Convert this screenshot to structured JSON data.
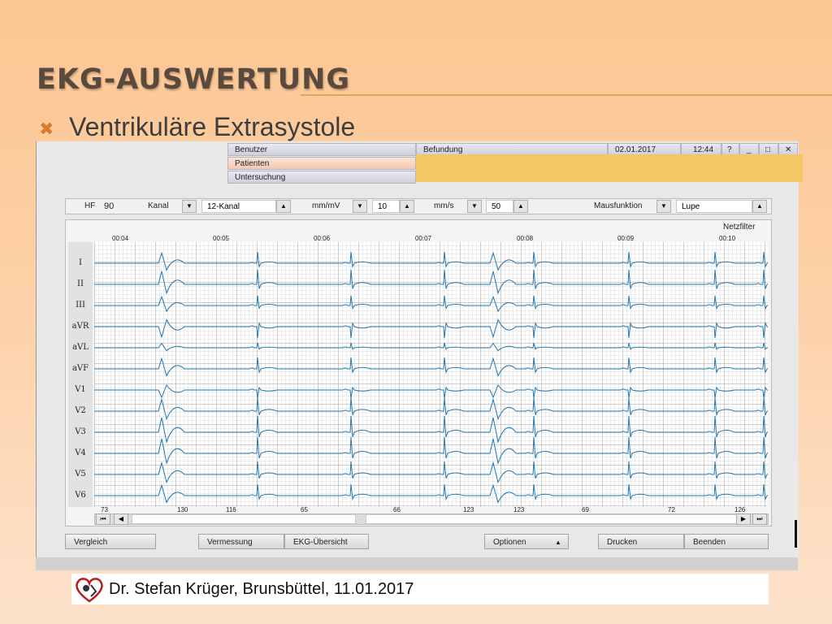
{
  "slide": {
    "title": "EKG-Auswertung",
    "bullet_icon": "x-bullet-icon",
    "bullet_text": "Ventrikuläre Extrasystole",
    "footer": "Dr. Stefan Krüger, Brunsbüttel, 11.01.2017",
    "colors": {
      "background": "#fcc692",
      "accent": "#d87a30",
      "overlay": "#f2c864",
      "trace": "#1f77b4"
    }
  },
  "app": {
    "header": {
      "benutzer": "Benutzer",
      "patienten": "Patienten",
      "untersuchung": "Untersuchung",
      "befundung": "Befundung",
      "date": "02.01.2017",
      "time": "12:44",
      "help": "?",
      "minimize": "_",
      "maximize": "□",
      "close": "✕"
    },
    "toolbar": {
      "hf_label": "HF",
      "hf_value": "90",
      "kanal_label": "Kanal",
      "kanal_value": "12-Kanal",
      "mmmv_label": "mm/mV",
      "mmmv_value": "10",
      "mms_label": "mm/s",
      "mms_value": "50",
      "mausfunktion_label": "Mausfunktion",
      "mausfunktion_value": "Lupe"
    },
    "ekg": {
      "netzfilter": "Netzfilter",
      "leads": [
        "I",
        "II",
        "III",
        "aVR",
        "aVL",
        "aVF",
        "V1",
        "V2",
        "V3",
        "V4",
        "V5",
        "V6"
      ],
      "time_labels": [
        "00:04",
        "00:05",
        "00:06",
        "00:07",
        "00:08",
        "00:09",
        "00:10"
      ],
      "rr_intervals": [
        "73",
        "130",
        "116",
        "65",
        "66",
        "123",
        "123",
        "69",
        "72",
        "126"
      ]
    },
    "buttons": {
      "vergleich": "Vergleich",
      "vermessung": "Vermessung",
      "ekg_uebersicht": "EKG-Übersicht",
      "optionen": "Optionen",
      "drucken": "Drucken",
      "beenden": "Beenden"
    }
  }
}
